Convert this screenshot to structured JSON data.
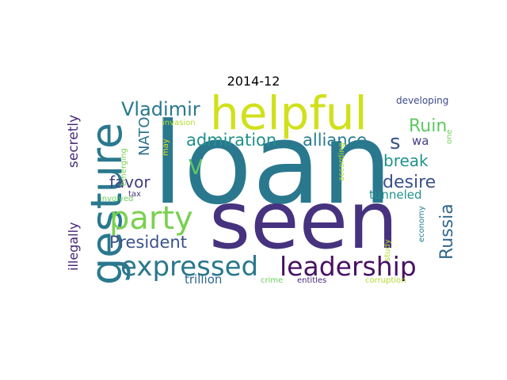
{
  "title": "2014-12",
  "words": [
    {
      "text": "loan",
      "color": "#2a788e"
    },
    {
      "text": "seen",
      "color": "#46327e"
    },
    {
      "text": "helpful",
      "color": "#d0e11c"
    },
    {
      "text": "gesture",
      "color": "#2a788e"
    },
    {
      "text": "party",
      "color": "#7ad151"
    },
    {
      "text": "expressed",
      "color": "#2a788e"
    },
    {
      "text": "leadership",
      "color": "#471164"
    },
    {
      "text": "admiration",
      "color": "#21918c"
    },
    {
      "text": "alliance",
      "color": "#287c8e"
    },
    {
      "text": "Vladimir",
      "color": "#2a788e"
    },
    {
      "text": "Ruin",
      "color": "#5ec962"
    },
    {
      "text": "Russia",
      "color": "#31688e"
    },
    {
      "text": "desire",
      "color": "#3b528b"
    },
    {
      "text": "break",
      "color": "#21918c"
    },
    {
      "text": "favor",
      "color": "#433e85"
    },
    {
      "text": "President",
      "color": "#3b528b"
    },
    {
      "text": "tunneled",
      "color": "#21918c"
    },
    {
      "text": "NATO",
      "color": "#2c728e"
    },
    {
      "text": "secretly",
      "color": "#472d7b"
    },
    {
      "text": "illegally",
      "color": "#482576"
    },
    {
      "text": "s",
      "color": "#3b528b"
    },
    {
      "text": "V",
      "color": "#5ec962"
    },
    {
      "text": "wa",
      "color": "#433e85"
    },
    {
      "text": "trillion",
      "color": "#31688e"
    },
    {
      "text": "developing",
      "color": "#3e4a89"
    },
    {
      "text": "crime",
      "color": "#6ccd5a"
    },
    {
      "text": "entitles",
      "color": "#482878"
    },
    {
      "text": "corruption",
      "color": "#addc30"
    },
    {
      "text": "invasion",
      "color": "#b5de2b"
    },
    {
      "text": "involved",
      "color": "#6ccd5a"
    },
    {
      "text": "emerging",
      "color": "#7ad151"
    },
    {
      "text": "tax",
      "color": "#443983"
    },
    {
      "text": "may",
      "color": "#dde318"
    },
    {
      "text": "according",
      "color": "#b5de2b"
    },
    {
      "text": "study",
      "color": "#b5de2b"
    },
    {
      "text": "economy",
      "color": "#26828e"
    },
    {
      "text": "one",
      "color": "#73d056"
    }
  ]
}
